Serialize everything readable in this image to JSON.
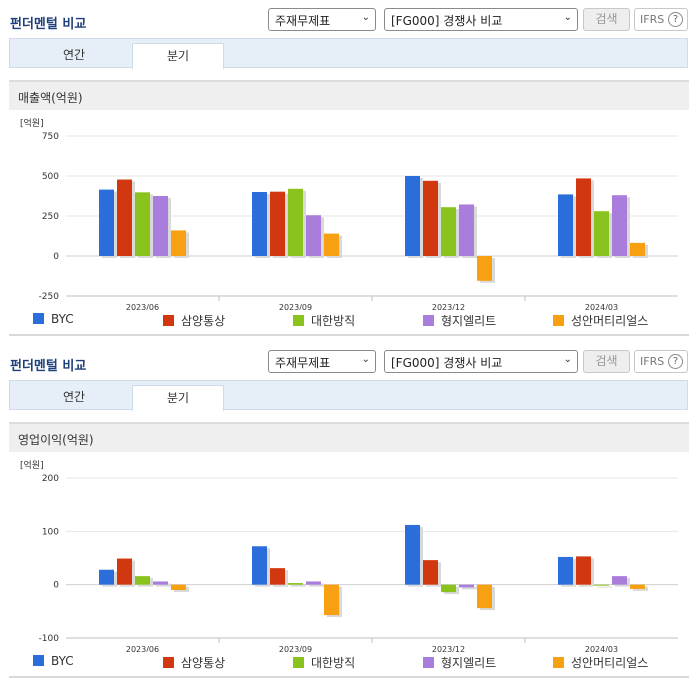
{
  "header": {
    "title": "펀더멘털 비교",
    "select_filter": "주재무제표",
    "select_compare": "[FG000] 경쟁사 비교",
    "search_label": "검색",
    "ifrs_label": "IFRS",
    "help_label": "?"
  },
  "tabs": [
    "연간",
    "분기"
  ],
  "colors": {
    "BYC": "#2a6ddb",
    "삼양통상": "#d1380f",
    "대한방직": "#8bc31e",
    "형지엘리트": "#a87ddb",
    "성안머티리얼스": "#f7a012"
  },
  "chart_data": [
    {
      "type": "bar",
      "title": "매출액(억원)",
      "unit": "[억원]",
      "categories": [
        "2023/06",
        "2023/09",
        "2023/12",
        "2024/03"
      ],
      "ylim": [
        -250,
        750
      ],
      "yticks": [
        750,
        500,
        250,
        0,
        -250
      ],
      "series": [
        {
          "name": "BYC",
          "values": [
            415,
            400,
            500,
            385
          ]
        },
        {
          "name": "삼양통상",
          "values": [
            478,
            402,
            470,
            485
          ]
        },
        {
          "name": "대한방직",
          "values": [
            398,
            420,
            305,
            280
          ]
        },
        {
          "name": "형지엘리트",
          "values": [
            375,
            255,
            322,
            380
          ]
        },
        {
          "name": "성안머티리얼스",
          "values": [
            160,
            140,
            -155,
            82
          ]
        }
      ]
    },
    {
      "type": "bar",
      "title": "영업이익(억원)",
      "unit": "[억원]",
      "categories": [
        "2023/06",
        "2023/09",
        "2023/12",
        "2024/03"
      ],
      "ylim": [
        -100,
        200
      ],
      "yticks": [
        200,
        100,
        0,
        -100
      ],
      "series": [
        {
          "name": "BYC",
          "values": [
            28,
            72,
            112,
            52
          ]
        },
        {
          "name": "삼양통상",
          "values": [
            49,
            31,
            46,
            53
          ]
        },
        {
          "name": "대한방직",
          "values": [
            16,
            3,
            -14,
            0
          ]
        },
        {
          "name": "형지엘리트",
          "values": [
            6,
            6,
            -5,
            16
          ]
        },
        {
          "name": "성안머티리얼스",
          "values": [
            -10,
            -57,
            -44,
            -8
          ]
        }
      ]
    }
  ]
}
